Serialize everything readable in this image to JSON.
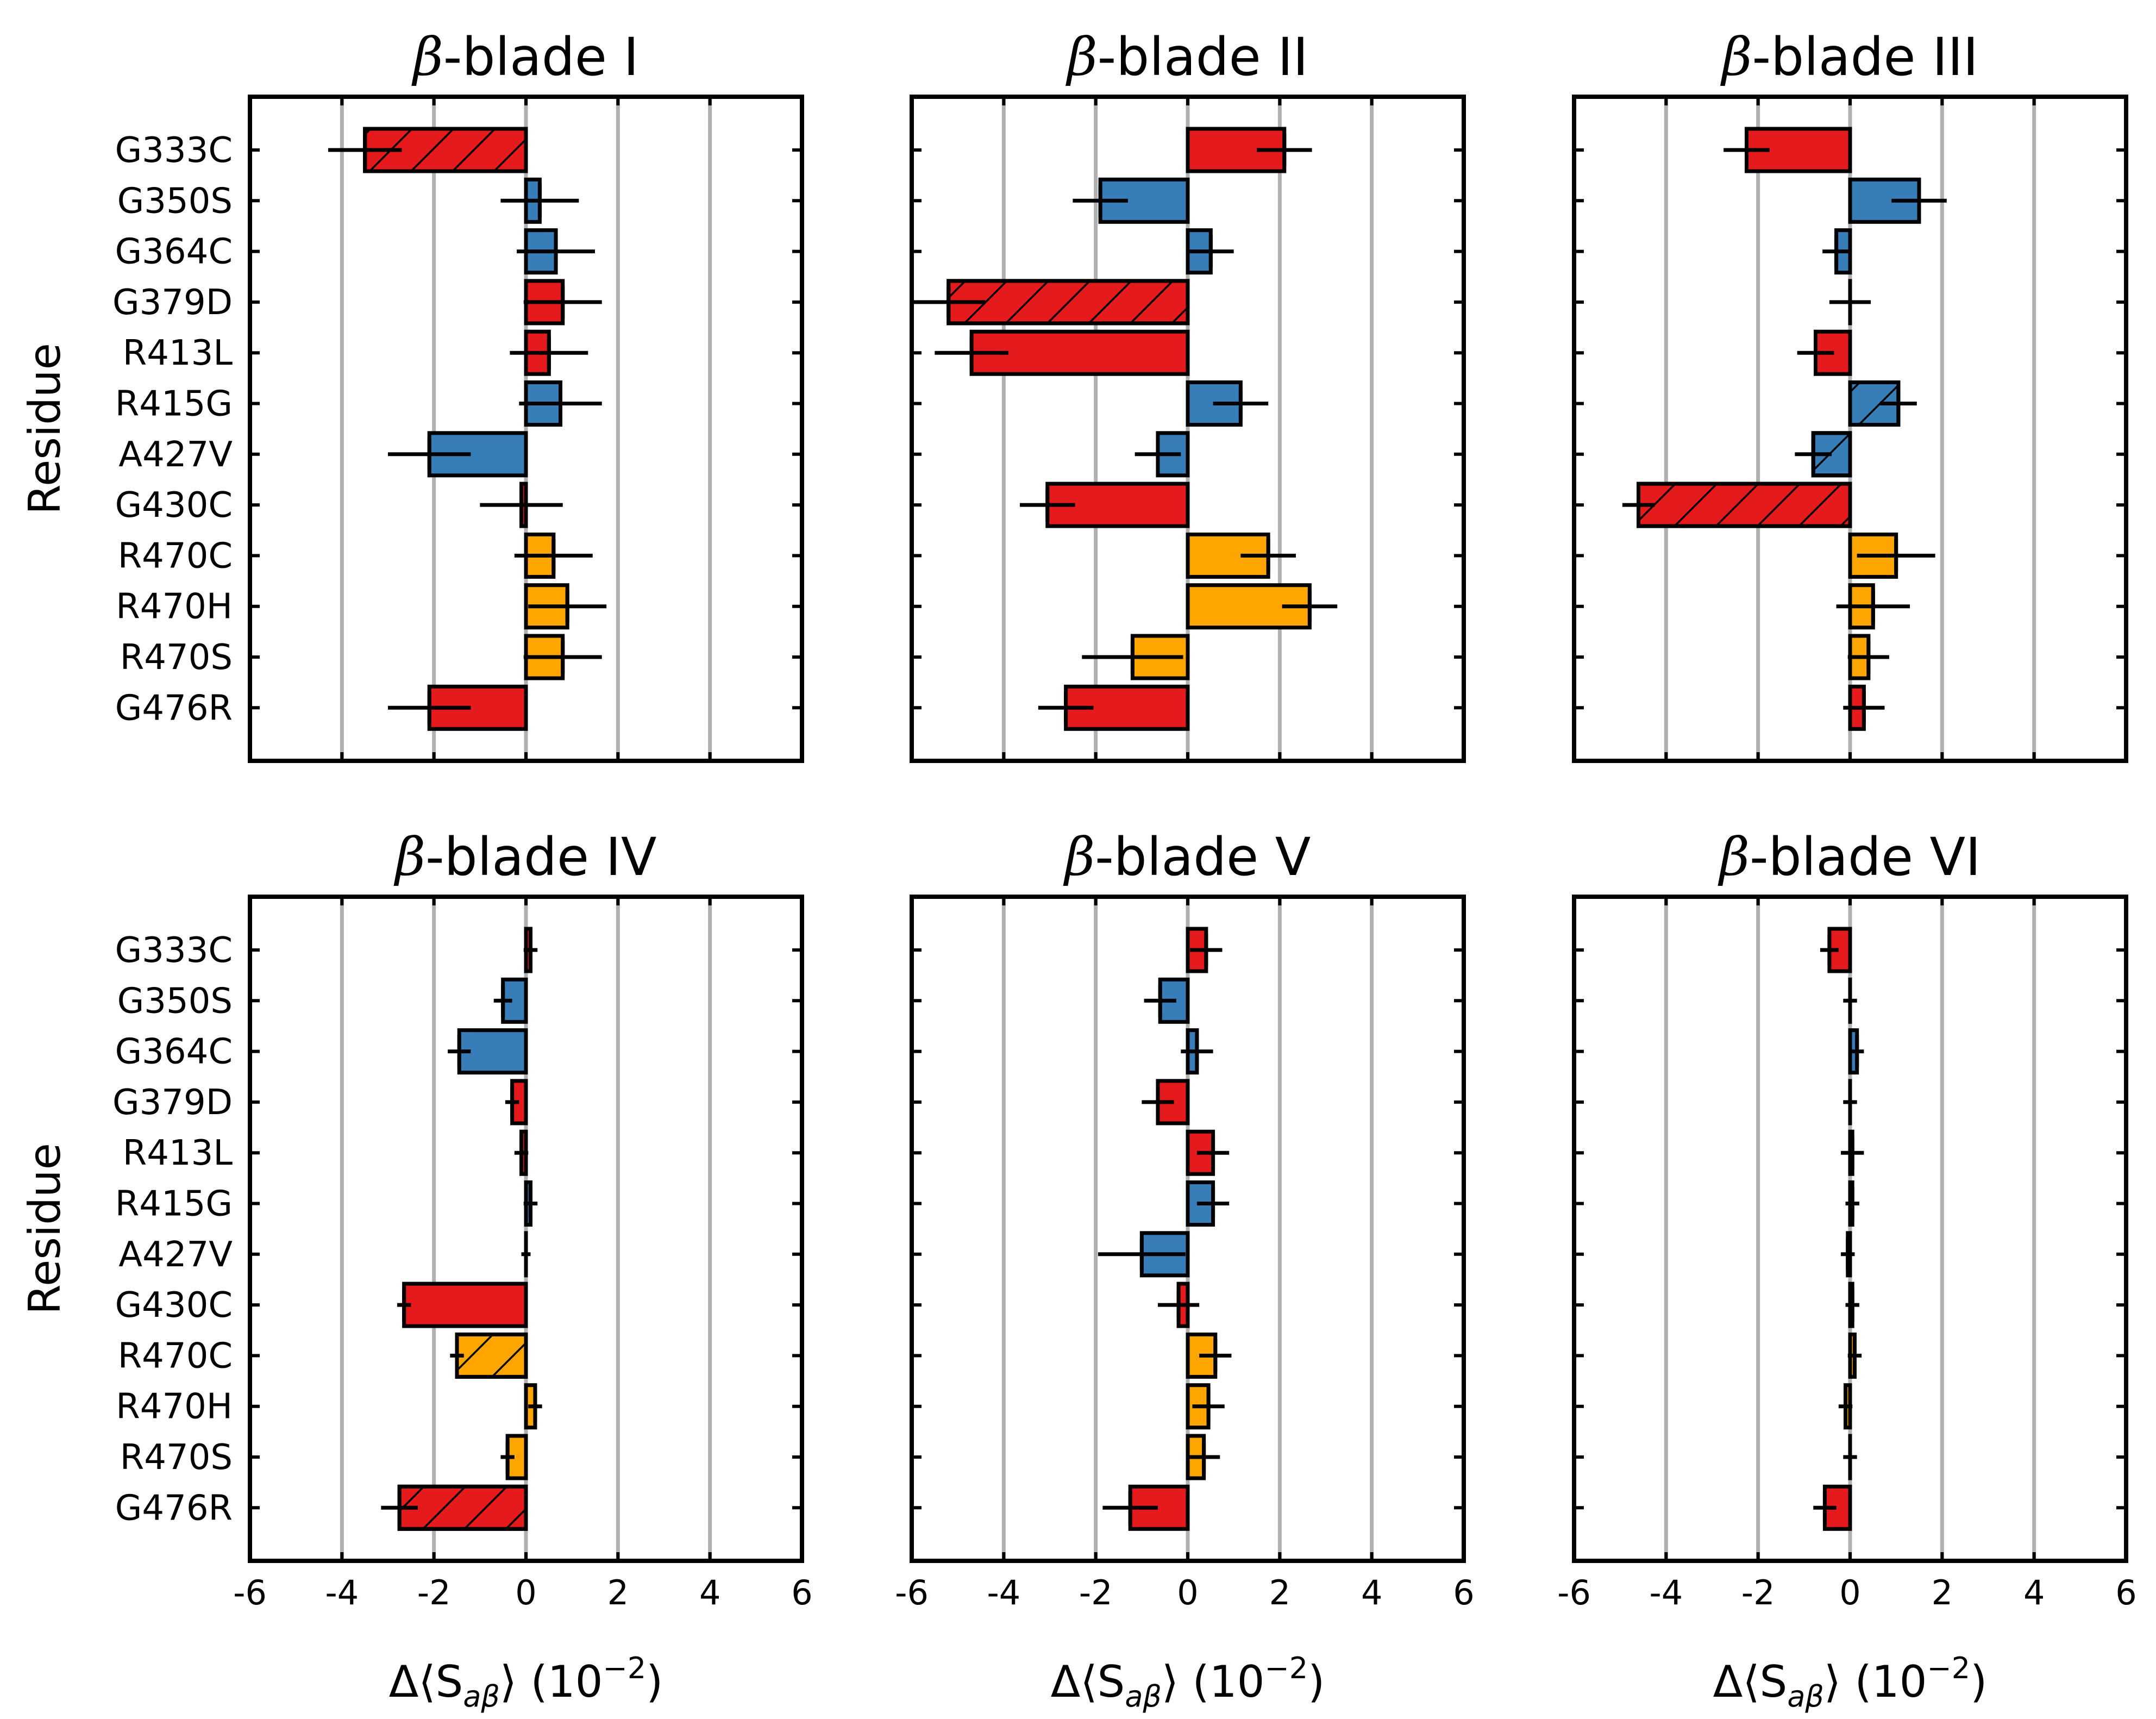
{
  "chart_data": [
    {
      "type": "bar",
      "orientation": "horizontal",
      "title_symbol": "β",
      "title_text": "-blade I",
      "ylabel": "Residue",
      "xlabel": {
        "prefix": "Δ⟨S",
        "subscript": "aβ",
        "suffix": "⟩ (10",
        "superscript": "−2",
        "close": ")"
      },
      "xlim": [
        -6,
        6
      ],
      "xticks": [
        "-6",
        "-4",
        "-2",
        "0",
        "2",
        "4",
        "6"
      ],
      "categories": [
        "G333C",
        "G350S",
        "G364C",
        "G379D",
        "R413L",
        "R415G",
        "A427V",
        "G430C",
        "R470C",
        "R470H",
        "R470S",
        "G476R"
      ],
      "values": [
        -3.5,
        0.3,
        0.65,
        0.8,
        0.5,
        0.75,
        -2.1,
        -0.1,
        0.6,
        0.9,
        0.8,
        -2.1
      ],
      "errors": [
        0.8,
        0.85,
        0.85,
        0.85,
        0.85,
        0.9,
        0.9,
        0.9,
        0.85,
        0.85,
        0.85,
        0.9
      ],
      "colors": [
        "red",
        "blue",
        "blue",
        "red",
        "red",
        "blue",
        "blue",
        "red",
        "orange",
        "orange",
        "orange",
        "red"
      ],
      "hatched": [
        true,
        false,
        false,
        false,
        false,
        false,
        false,
        false,
        false,
        false,
        false,
        false
      ],
      "show_ylabels": true,
      "show_xlabels": false
    },
    {
      "type": "bar",
      "orientation": "horizontal",
      "title_symbol": "β",
      "title_text": "-blade II",
      "ylabel": "",
      "xlabel": {
        "prefix": "Δ⟨S",
        "subscript": "aβ",
        "suffix": "⟩ (10",
        "superscript": "−2",
        "close": ")"
      },
      "xlim": [
        -6,
        6
      ],
      "xticks": [
        "-6",
        "-4",
        "-2",
        "0",
        "2",
        "4",
        "6"
      ],
      "categories": [
        "G333C",
        "G350S",
        "G364C",
        "G379D",
        "R413L",
        "R415G",
        "A427V",
        "G430C",
        "R470C",
        "R470H",
        "R470S",
        "G476R"
      ],
      "values": [
        2.1,
        -1.9,
        0.5,
        -5.2,
        -4.7,
        1.15,
        -0.65,
        -3.05,
        1.75,
        2.65,
        -1.2,
        -2.65
      ],
      "errors": [
        0.6,
        0.6,
        0.5,
        0.8,
        0.8,
        0.6,
        0.5,
        0.6,
        0.6,
        0.6,
        1.1,
        0.6
      ],
      "colors": [
        "red",
        "blue",
        "blue",
        "red",
        "red",
        "blue",
        "blue",
        "red",
        "orange",
        "orange",
        "orange",
        "red"
      ],
      "hatched": [
        false,
        false,
        false,
        true,
        false,
        false,
        false,
        false,
        false,
        false,
        false,
        false
      ],
      "show_ylabels": false,
      "show_xlabels": false
    },
    {
      "type": "bar",
      "orientation": "horizontal",
      "title_symbol": "β",
      "title_text": "-blade III",
      "ylabel": "",
      "xlabel": {
        "prefix": "Δ⟨S",
        "subscript": "aβ",
        "suffix": "⟩ (10",
        "superscript": "−2",
        "close": ")"
      },
      "xlim": [
        -6,
        6
      ],
      "xticks": [
        "-6",
        "-4",
        "-2",
        "0",
        "2",
        "4",
        "6"
      ],
      "categories": [
        "G333C",
        "G350S",
        "G364C",
        "G379D",
        "R413L",
        "R415G",
        "A427V",
        "G430C",
        "R470C",
        "R470H",
        "R470S",
        "G476R"
      ],
      "values": [
        -2.25,
        1.5,
        -0.3,
        0.0,
        -0.75,
        1.05,
        -0.8,
        -4.6,
        1.0,
        0.5,
        0.4,
        0.3
      ],
      "errors": [
        0.5,
        0.6,
        0.3,
        0.45,
        0.4,
        0.4,
        0.4,
        0.35,
        0.85,
        0.8,
        0.45,
        0.45
      ],
      "colors": [
        "red",
        "blue",
        "blue",
        "red",
        "red",
        "blue",
        "blue",
        "red",
        "orange",
        "orange",
        "orange",
        "red"
      ],
      "hatched": [
        false,
        false,
        false,
        false,
        false,
        true,
        true,
        true,
        false,
        false,
        false,
        false
      ],
      "show_ylabels": false,
      "show_xlabels": false
    },
    {
      "type": "bar",
      "orientation": "horizontal",
      "title_symbol": "β",
      "title_text": "-blade IV",
      "ylabel": "Residue",
      "xlabel": {
        "prefix": "Δ⟨S",
        "subscript": "aβ",
        "suffix": "⟩ (10",
        "superscript": "−2",
        "close": ")"
      },
      "xlim": [
        -6,
        6
      ],
      "xticks": [
        "-6",
        "-4",
        "-2",
        "0",
        "2",
        "4",
        "6"
      ],
      "categories": [
        "G333C",
        "G350S",
        "G364C",
        "G379D",
        "R413L",
        "R415G",
        "A427V",
        "G430C",
        "R470C",
        "R470H",
        "R470S",
        "G476R"
      ],
      "values": [
        0.1,
        -0.5,
        -1.45,
        -0.3,
        -0.1,
        0.1,
        0.0,
        -2.65,
        -1.5,
        0.2,
        -0.4,
        -2.75
      ],
      "errors": [
        0.15,
        0.2,
        0.25,
        0.15,
        0.15,
        0.15,
        0.1,
        0.15,
        0.15,
        0.15,
        0.15,
        0.4
      ],
      "colors": [
        "red",
        "blue",
        "blue",
        "red",
        "red",
        "blue",
        "blue",
        "red",
        "orange",
        "orange",
        "orange",
        "red"
      ],
      "hatched": [
        false,
        false,
        false,
        false,
        false,
        false,
        false,
        false,
        true,
        false,
        false,
        true
      ],
      "show_ylabels": true,
      "show_xlabels": true
    },
    {
      "type": "bar",
      "orientation": "horizontal",
      "title_symbol": "β",
      "title_text": "-blade V",
      "ylabel": "",
      "xlabel": {
        "prefix": "Δ⟨S",
        "subscript": "aβ",
        "suffix": "⟩ (10",
        "superscript": "−2",
        "close": ")"
      },
      "xlim": [
        -6,
        6
      ],
      "xticks": [
        "-6",
        "-4",
        "-2",
        "0",
        "2",
        "4",
        "6"
      ],
      "categories": [
        "G333C",
        "G350S",
        "G364C",
        "G379D",
        "R413L",
        "R415G",
        "A427V",
        "G430C",
        "R470C",
        "R470H",
        "R470S",
        "G476R"
      ],
      "values": [
        0.4,
        -0.6,
        0.2,
        -0.65,
        0.55,
        0.55,
        -1.0,
        -0.2,
        0.6,
        0.45,
        0.35,
        -1.25
      ],
      "errors": [
        0.35,
        0.35,
        0.35,
        0.35,
        0.35,
        0.35,
        0.95,
        0.45,
        0.35,
        0.35,
        0.35,
        0.6
      ],
      "colors": [
        "red",
        "blue",
        "blue",
        "red",
        "red",
        "blue",
        "blue",
        "red",
        "orange",
        "orange",
        "orange",
        "red"
      ],
      "hatched": [
        false,
        false,
        false,
        false,
        false,
        false,
        false,
        false,
        false,
        false,
        false,
        false
      ],
      "show_ylabels": false,
      "show_xlabels": true
    },
    {
      "type": "bar",
      "orientation": "horizontal",
      "title_symbol": "β",
      "title_text": "-blade VI",
      "ylabel": "",
      "xlabel": {
        "prefix": "Δ⟨S",
        "subscript": "aβ",
        "suffix": "⟩ (10",
        "superscript": "−2",
        "close": ")"
      },
      "xlim": [
        -6,
        6
      ],
      "xticks": [
        "-6",
        "-4",
        "-2",
        "0",
        "2",
        "4",
        "6"
      ],
      "categories": [
        "G333C",
        "G350S",
        "G364C",
        "G379D",
        "R413L",
        "R415G",
        "A427V",
        "G430C",
        "R470C",
        "R470H",
        "R470S",
        "G476R"
      ],
      "values": [
        -0.45,
        0.0,
        0.15,
        0.0,
        0.05,
        0.05,
        -0.05,
        0.05,
        0.1,
        -0.1,
        0.0,
        -0.55
      ],
      "errors": [
        0.2,
        0.15,
        0.15,
        0.15,
        0.25,
        0.15,
        0.15,
        0.15,
        0.15,
        0.15,
        0.15,
        0.25
      ],
      "colors": [
        "red",
        "blue",
        "blue",
        "red",
        "red",
        "blue",
        "blue",
        "red",
        "orange",
        "orange",
        "orange",
        "red"
      ],
      "hatched": [
        false,
        false,
        false,
        false,
        false,
        false,
        false,
        false,
        false,
        false,
        false,
        false
      ],
      "show_ylabels": false,
      "show_xlabels": true
    }
  ],
  "palette": {
    "red": "#e41a1c",
    "blue": "#377eb8",
    "orange": "#ffa500",
    "grid": "#b0b0b0"
  }
}
